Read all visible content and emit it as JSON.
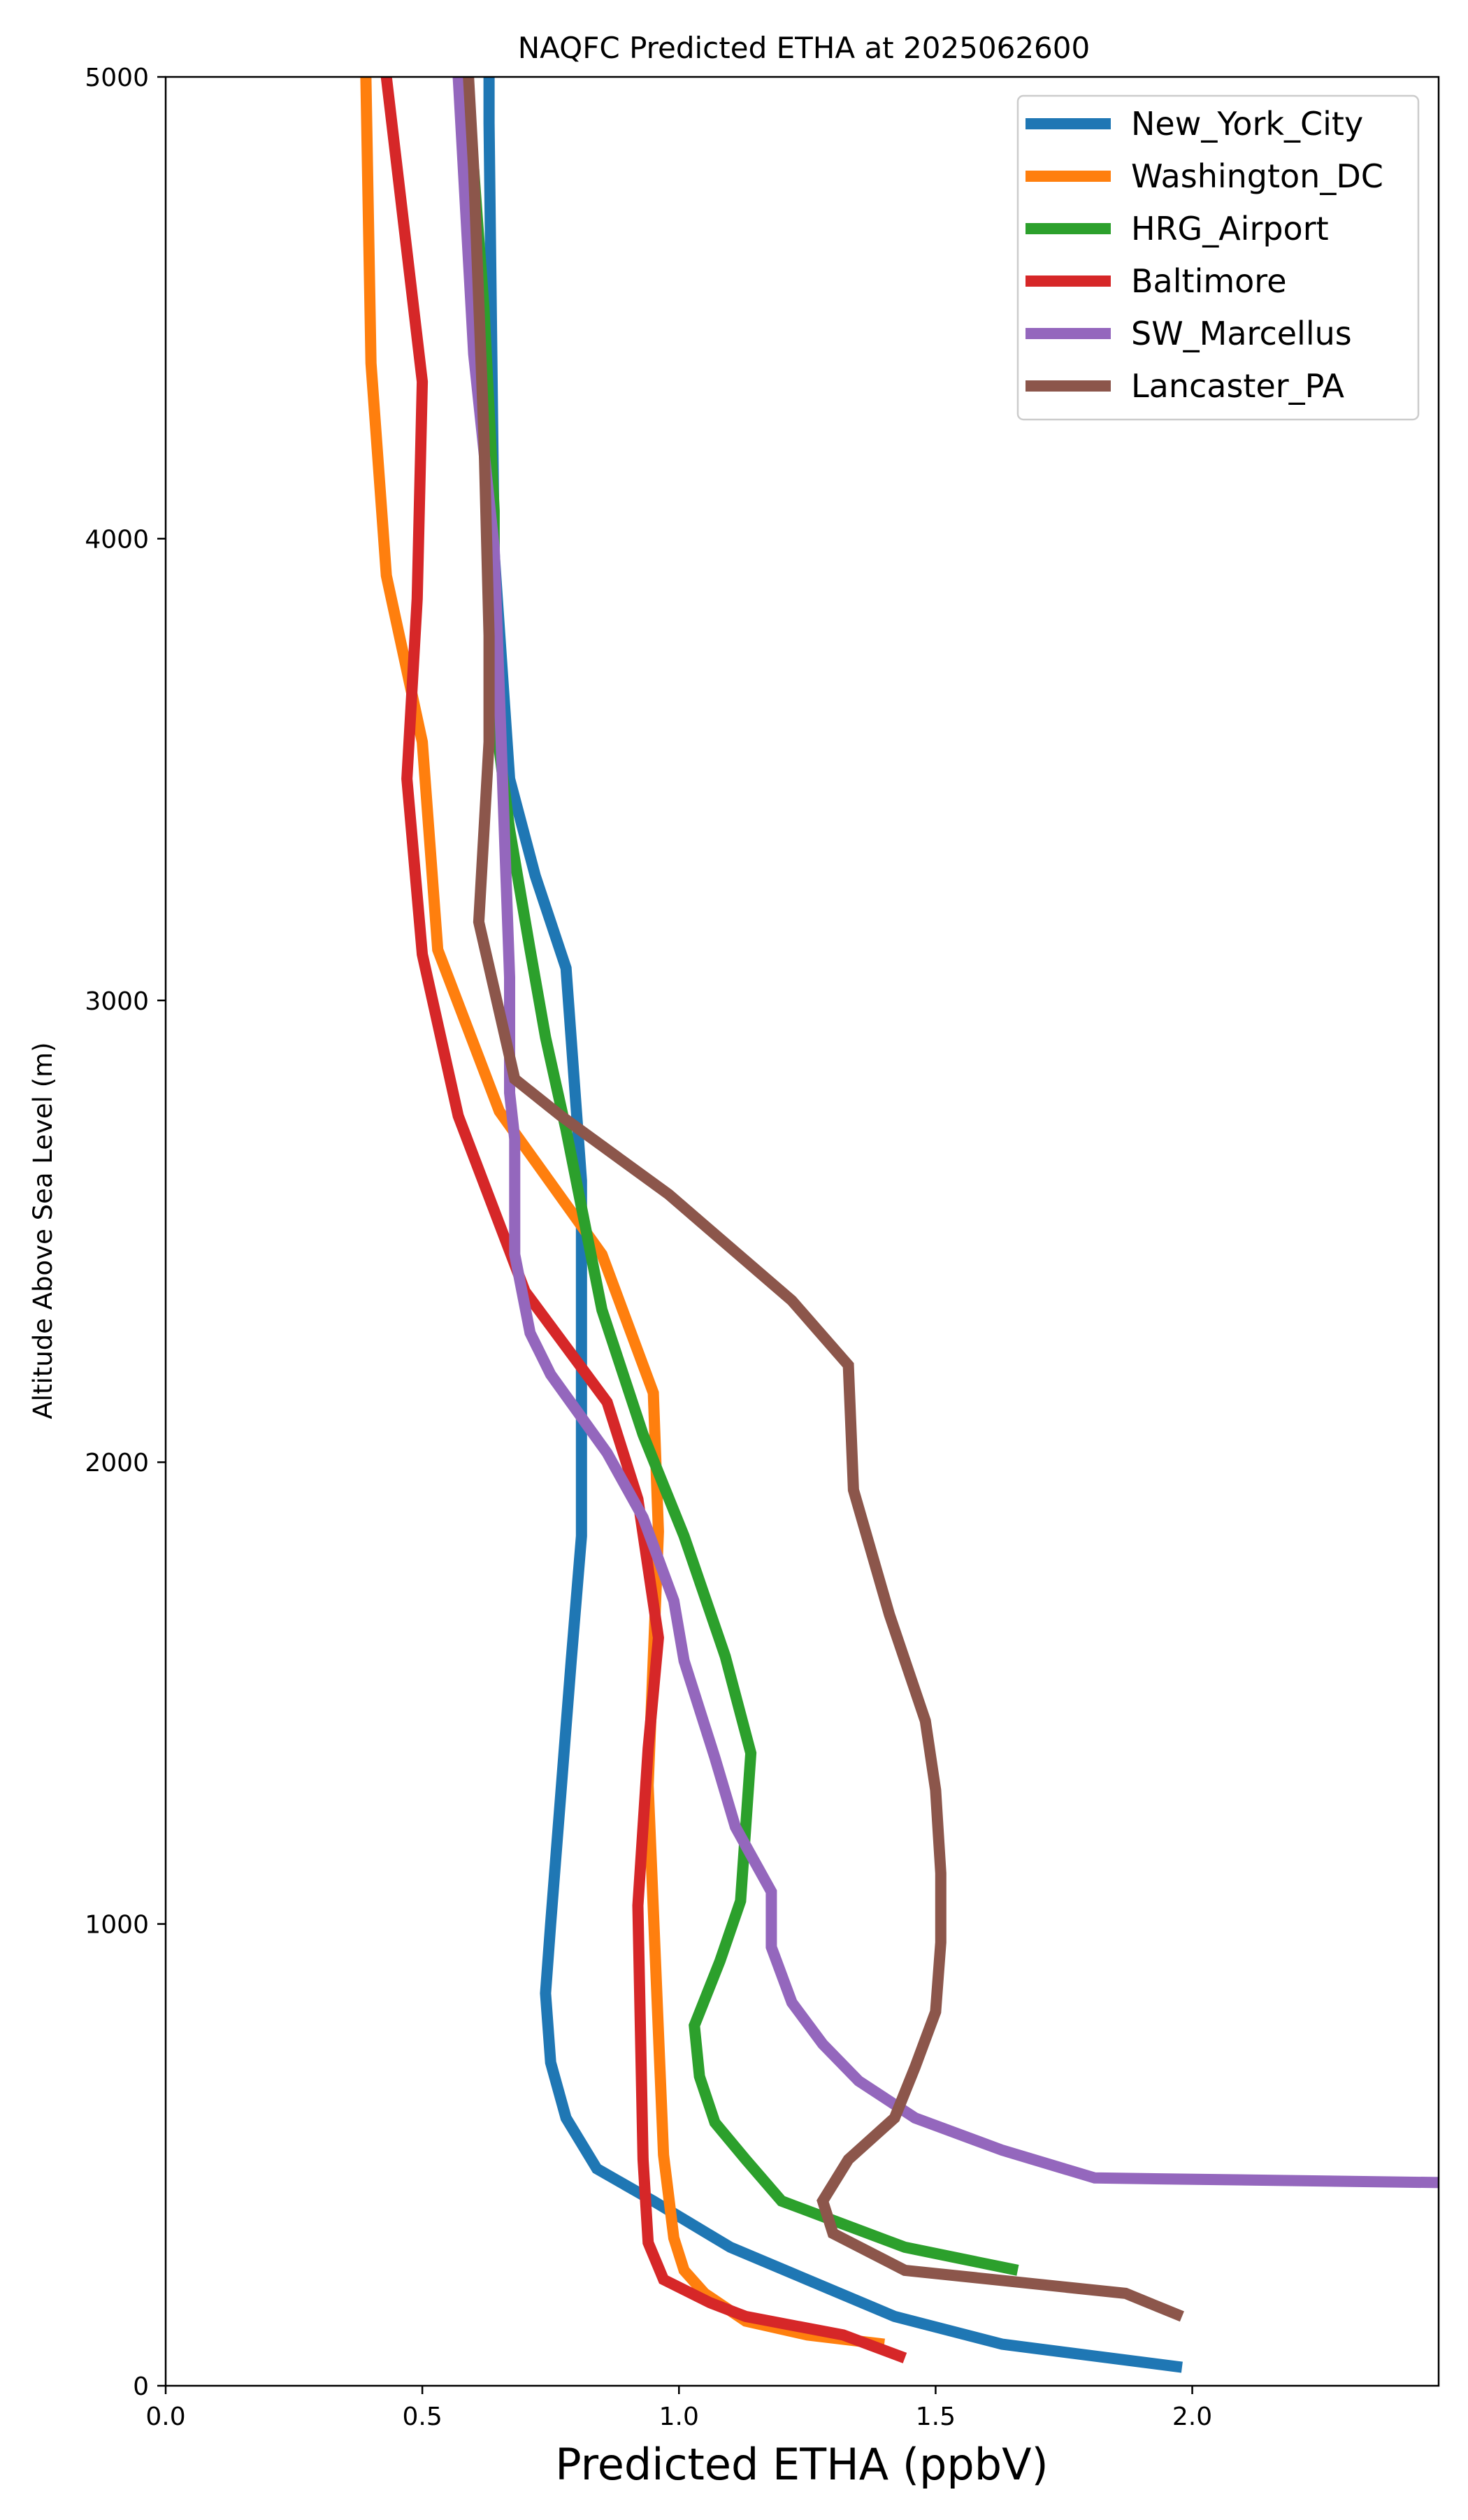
{
  "chart_data": {
    "type": "line",
    "title": "NAQFC Predicted ETHA at 2025062600",
    "xlabel": "Predicted ETHA (ppbV)",
    "ylabel": "Altitude Above Sea Level (m)",
    "xlim": [
      0,
      2.48
    ],
    "ylim": [
      0,
      5000
    ],
    "x_ticks": [
      "0.0",
      "0.5",
      "1.0",
      "1.5",
      "2.0"
    ],
    "y_ticks": [
      "0",
      "1000",
      "2000",
      "3000",
      "4000",
      "5000"
    ],
    "grid": false,
    "legend_position": "top-right",
    "series": [
      {
        "name": "New_York_City",
        "color": "#1f77b4",
        "points": [
          [
            1.98,
            40
          ],
          [
            1.63,
            90
          ],
          [
            1.42,
            150
          ],
          [
            1.1,
            300
          ],
          [
            0.95,
            400
          ],
          [
            0.84,
            470
          ],
          [
            0.78,
            580
          ],
          [
            0.75,
            700
          ],
          [
            0.74,
            850
          ],
          [
            0.75,
            1000
          ],
          [
            0.79,
            1570
          ],
          [
            0.81,
            1840
          ],
          [
            0.81,
            2610
          ],
          [
            0.78,
            3070
          ],
          [
            0.72,
            3270
          ],
          [
            0.67,
            3480
          ],
          [
            0.64,
            3970
          ],
          [
            0.63,
            4900
          ],
          [
            0.63,
            5000
          ]
        ]
      },
      {
        "name": "Washington_DC",
        "color": "#ff7f0e",
        "points": [
          [
            1.4,
            90
          ],
          [
            1.25,
            110
          ],
          [
            1.13,
            140
          ],
          [
            1.05,
            200
          ],
          [
            1.01,
            250
          ],
          [
            0.99,
            320
          ],
          [
            0.97,
            500
          ],
          [
            0.94,
            1300
          ],
          [
            0.96,
            1850
          ],
          [
            0.95,
            2150
          ],
          [
            0.85,
            2450
          ],
          [
            0.65,
            2760
          ],
          [
            0.53,
            3110
          ],
          [
            0.5,
            3560
          ],
          [
            0.43,
            3920
          ],
          [
            0.4,
            4380
          ],
          [
            0.39,
            5000
          ]
        ]
      },
      {
        "name": "HRG_Airport",
        "color": "#2ca02c",
        "points": [
          [
            1.66,
            250
          ],
          [
            1.44,
            300
          ],
          [
            1.2,
            400
          ],
          [
            1.13,
            490
          ],
          [
            1.07,
            570
          ],
          [
            1.04,
            670
          ],
          [
            1.03,
            780
          ],
          [
            1.08,
            920
          ],
          [
            1.12,
            1050
          ],
          [
            1.14,
            1370
          ],
          [
            1.09,
            1580
          ],
          [
            1.01,
            1840
          ],
          [
            0.93,
            2060
          ],
          [
            0.85,
            2330
          ],
          [
            0.78,
            2720
          ],
          [
            0.74,
            2920
          ],
          [
            0.71,
            3110
          ],
          [
            0.67,
            3370
          ],
          [
            0.64,
            3630
          ],
          [
            0.64,
            4060
          ],
          [
            0.62,
            4500
          ],
          [
            0.6,
            4800
          ]
        ]
      },
      {
        "name": "Baltimore",
        "color": "#d62728",
        "points": [
          [
            1.44,
            60
          ],
          [
            1.32,
            110
          ],
          [
            1.13,
            150
          ],
          [
            1.06,
            180
          ],
          [
            0.97,
            230
          ],
          [
            0.94,
            310
          ],
          [
            0.93,
            490
          ],
          [
            0.92,
            1040
          ],
          [
            0.94,
            1380
          ],
          [
            0.96,
            1620
          ],
          [
            0.92,
            1920
          ],
          [
            0.86,
            2130
          ],
          [
            0.7,
            2370
          ],
          [
            0.57,
            2750
          ],
          [
            0.5,
            3100
          ],
          [
            0.47,
            3480
          ],
          [
            0.49,
            3870
          ],
          [
            0.5,
            4340
          ],
          [
            0.43,
            5000
          ]
        ]
      },
      {
        "name": "SW_Marcellus",
        "color": "#9467bd",
        "points": [
          [
            2.48,
            440
          ],
          [
            1.81,
            450
          ],
          [
            1.63,
            510
          ],
          [
            1.46,
            580
          ],
          [
            1.35,
            660
          ],
          [
            1.28,
            740
          ],
          [
            1.22,
            830
          ],
          [
            1.18,
            950
          ],
          [
            1.18,
            1070
          ],
          [
            1.11,
            1210
          ],
          [
            1.07,
            1360
          ],
          [
            1.01,
            1570
          ],
          [
            0.99,
            1700
          ],
          [
            0.93,
            1880
          ],
          [
            0.86,
            2020
          ],
          [
            0.75,
            2190
          ],
          [
            0.71,
            2280
          ],
          [
            0.68,
            2450
          ],
          [
            0.68,
            2700
          ],
          [
            0.67,
            2800
          ],
          [
            0.67,
            3050
          ],
          [
            0.64,
            3980
          ],
          [
            0.6,
            4400
          ],
          [
            0.57,
            5000
          ]
        ]
      },
      {
        "name": "Lancaster_PA",
        "color": "#8c564b",
        "points": [
          [
            1.98,
            150
          ],
          [
            1.87,
            200
          ],
          [
            1.44,
            250
          ],
          [
            1.3,
            330
          ],
          [
            1.28,
            400
          ],
          [
            1.33,
            490
          ],
          [
            1.42,
            580
          ],
          [
            1.46,
            690
          ],
          [
            1.5,
            810
          ],
          [
            1.51,
            960
          ],
          [
            1.51,
            1110
          ],
          [
            1.5,
            1290
          ],
          [
            1.48,
            1440
          ],
          [
            1.41,
            1670
          ],
          [
            1.34,
            1940
          ],
          [
            1.33,
            2210
          ],
          [
            1.22,
            2350
          ],
          [
            0.98,
            2580
          ],
          [
            0.77,
            2750
          ],
          [
            0.68,
            2830
          ],
          [
            0.61,
            3170
          ],
          [
            0.63,
            3560
          ],
          [
            0.63,
            3790
          ],
          [
            0.62,
            4220
          ],
          [
            0.6,
            4800
          ],
          [
            0.59,
            5000
          ]
        ]
      }
    ]
  }
}
